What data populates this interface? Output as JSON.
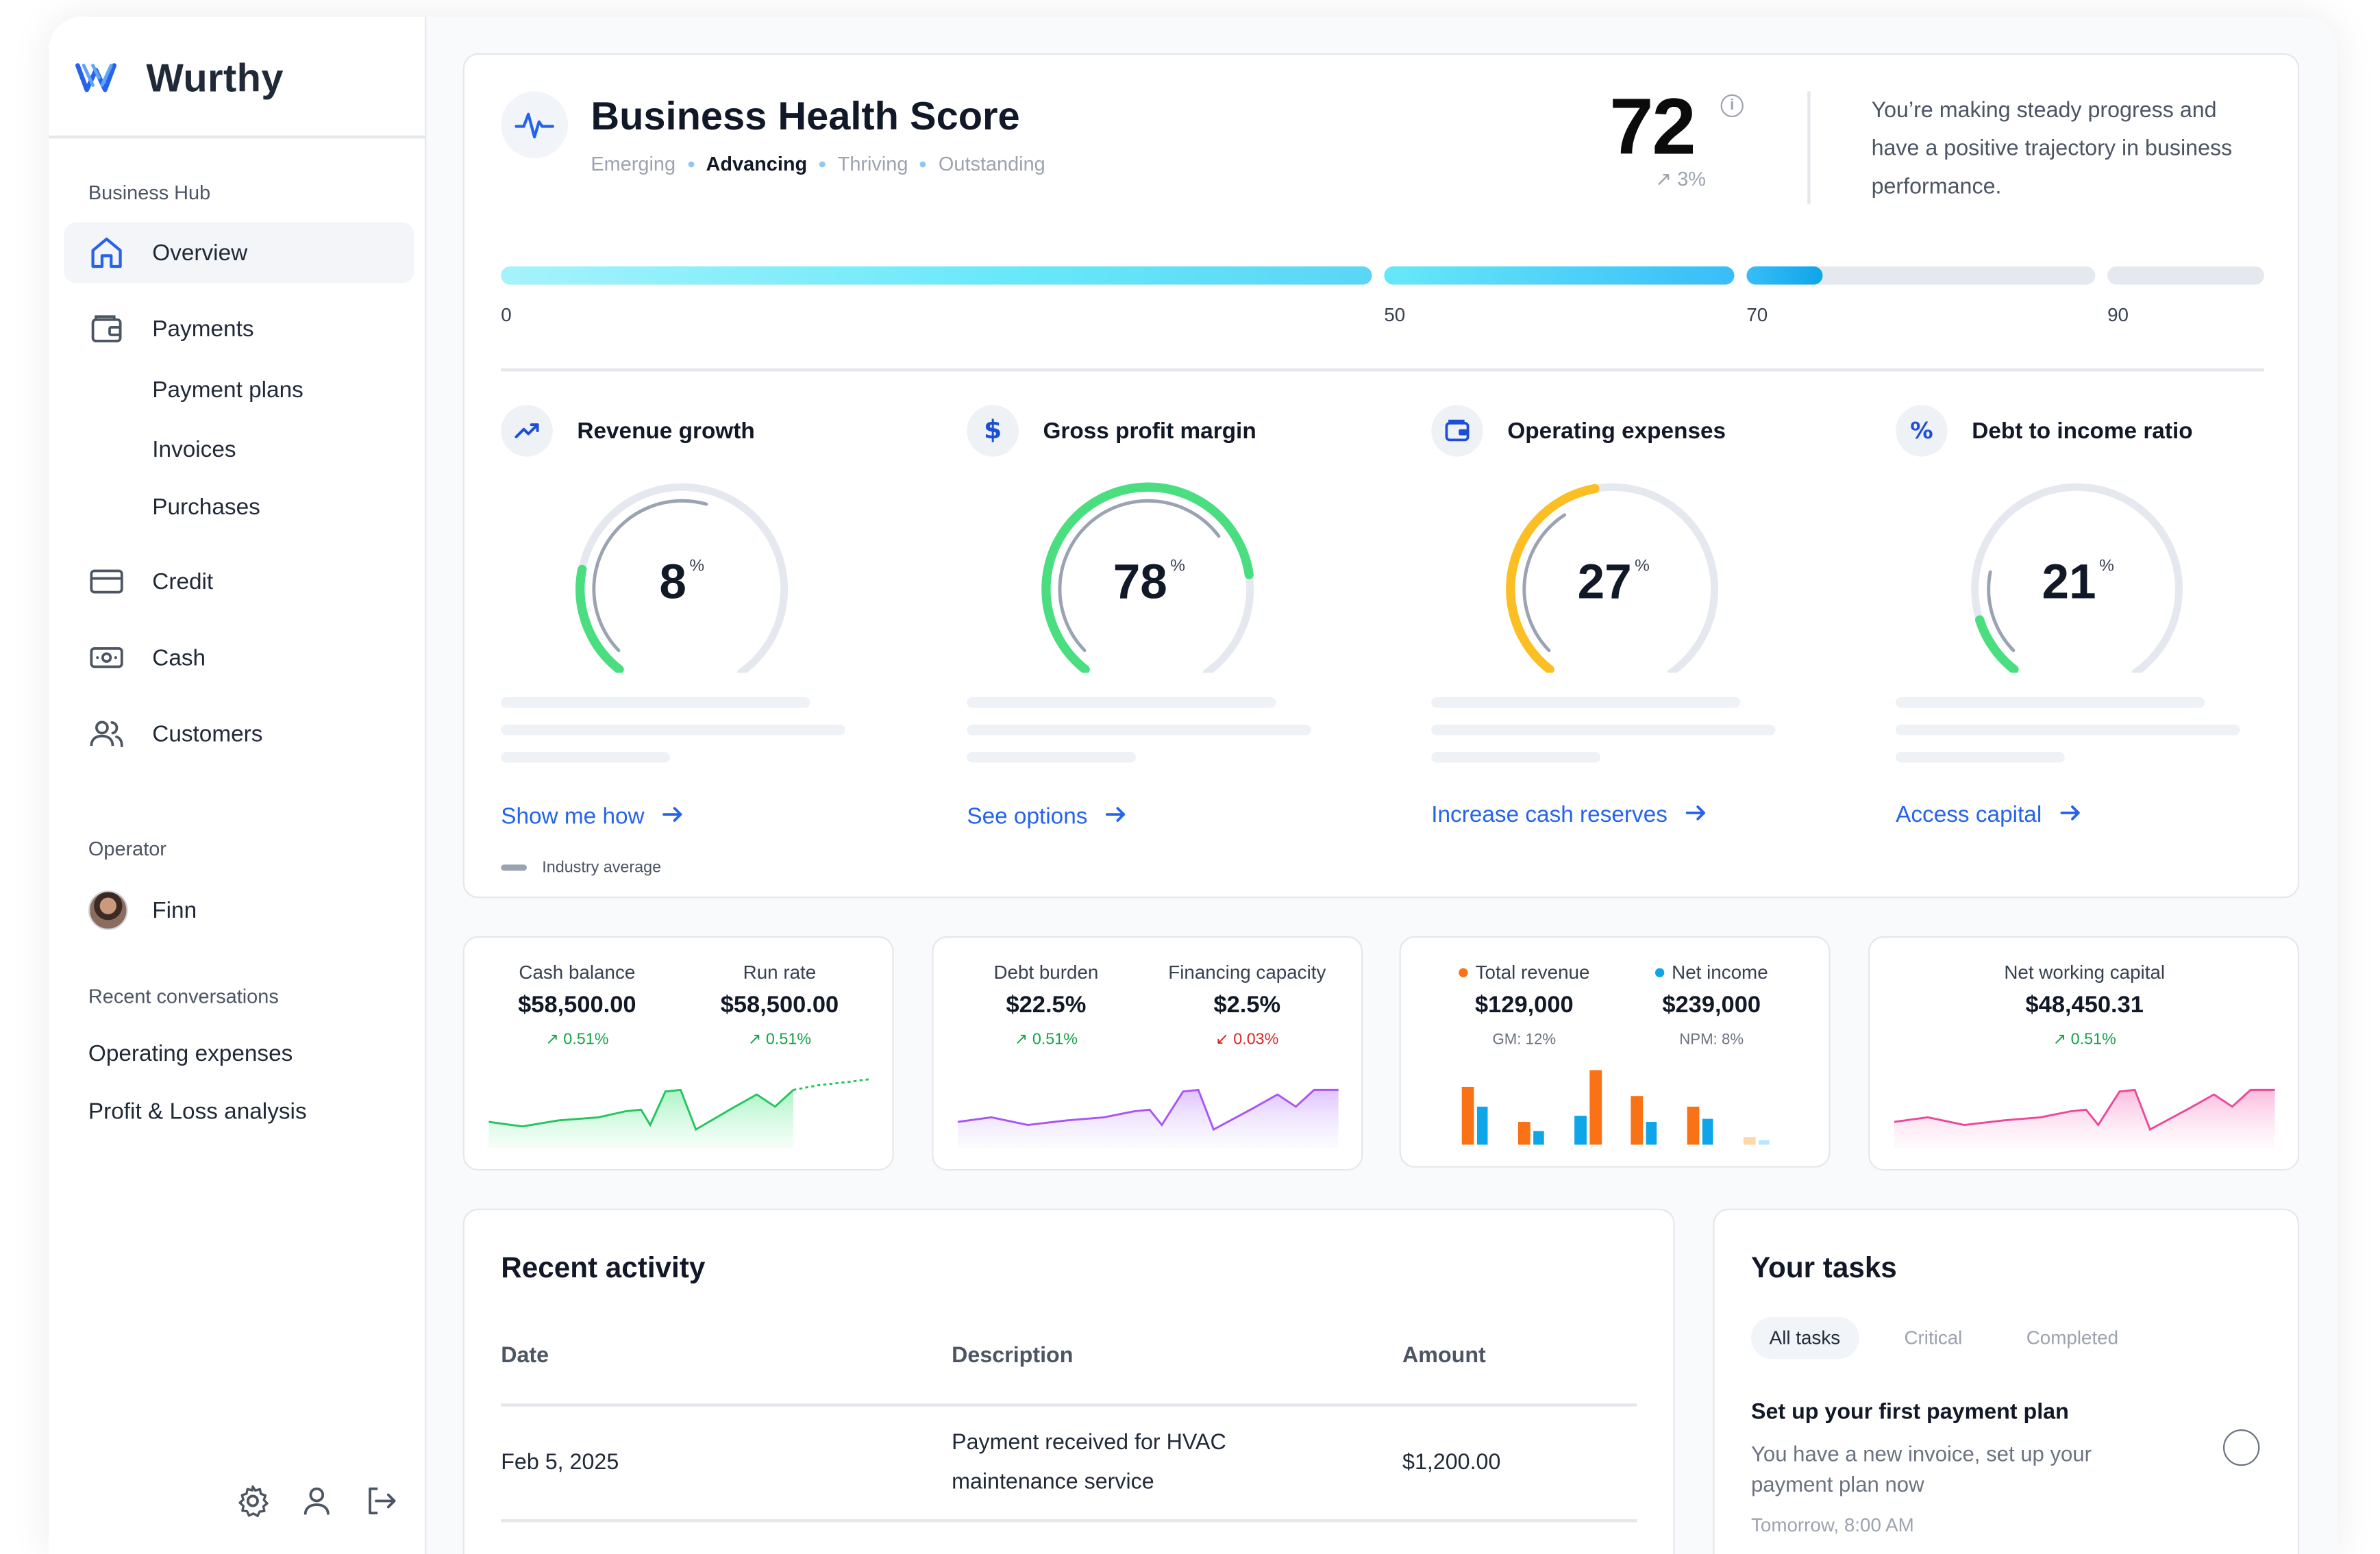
{
  "brand": {
    "name": "Wurthy",
    "accent": "#2563eb"
  },
  "sidebar": {
    "section_hub": "Business Hub",
    "items": [
      {
        "label": "Overview",
        "icon": "home-icon",
        "active": true
      },
      {
        "label": "Payments",
        "icon": "wallet-icon"
      },
      {
        "label": "Credit",
        "icon": "credit-card-icon"
      },
      {
        "label": "Cash",
        "icon": "cash-icon"
      },
      {
        "label": "Customers",
        "icon": "users-icon"
      }
    ],
    "payments_sub": [
      "Payment plans",
      "Invoices",
      "Purchases"
    ],
    "section_operator": "Operator",
    "operator_name": "Finn",
    "section_conversations": "Recent conversations",
    "conversations": [
      "Operating expenses",
      "Profit & Loss analysis"
    ],
    "footer_icons": [
      "settings-icon",
      "user-icon",
      "logout-icon"
    ]
  },
  "health": {
    "title": "Business Health Score",
    "stages": [
      "Emerging",
      "Advancing",
      "Thriving",
      "Outstanding"
    ],
    "current_stage": "Advancing",
    "score": "72",
    "delta": "↗ 3%",
    "message": "You’re making steady progress and have a positive trajectory in business performance.",
    "scale_ticks": [
      "0",
      "50",
      "70",
      "90"
    ],
    "legend": "Industry average",
    "metrics": [
      {
        "title": "Revenue growth",
        "icon": "trend-up-icon",
        "value": "8",
        "unit": "%",
        "fraction": 0.22,
        "industry": 0.55,
        "color": "#4ade80",
        "link": "Show me how"
      },
      {
        "title": "Gross profit margin",
        "icon": "dollar-icon",
        "value": "78",
        "unit": "%",
        "fraction": 0.78,
        "industry": 0.68,
        "color": "#4ade80",
        "link": "See options"
      },
      {
        "title": "Operating expenses",
        "icon": "wallet-icon",
        "value": "27",
        "unit": "%",
        "fraction": 0.46,
        "industry": 0.38,
        "color": "#fbbf24",
        "link": "Increase cash reserves"
      },
      {
        "title": "Debt to income ratio",
        "icon": "percent-icon",
        "value": "21",
        "unit": "%",
        "fraction": 0.12,
        "industry": 0.22,
        "color": "#4ade80",
        "link": "Access capital"
      }
    ]
  },
  "kpis": {
    "card1": [
      {
        "label": "Cash balance",
        "value": "$58,500.00",
        "delta": "↗ 0.51%",
        "trend": "up"
      },
      {
        "label": "Run rate",
        "value": "$58,500.00",
        "delta": "↗ 0.51%",
        "trend": "up"
      }
    ],
    "card2": [
      {
        "label": "Debt burden",
        "value": "$22.5%",
        "delta": "↗ 0.51%",
        "trend": "up"
      },
      {
        "label": "Financing capacity",
        "value": "$2.5%",
        "delta": "↙ 0.03%",
        "trend": "down"
      }
    ],
    "card3": [
      {
        "label": "Total revenue",
        "value": "$129,000",
        "sub": "GM: 12%",
        "dot": "#f97316"
      },
      {
        "label": "Net income",
        "value": "$239,000",
        "sub": "NPM: 8%",
        "dot": "#0ea5e9"
      }
    ],
    "card4": [
      {
        "label": "Net working capital",
        "value": "$48,450.31",
        "delta": "↗ 0.51%",
        "trend": "up"
      }
    ]
  },
  "activity": {
    "title": "Recent activity",
    "headers": [
      "Date",
      "Description",
      "Amount"
    ],
    "rows": [
      {
        "date": "Feb 5, 2025",
        "description": "Payment received for HVAC maintenance service",
        "amount": "$1,200.00"
      }
    ]
  },
  "tasks": {
    "title": "Your tasks",
    "tabs": [
      "All tasks",
      "Critical",
      "Completed"
    ],
    "active_tab": "All tasks",
    "items": [
      {
        "title": "Set up your first payment plan",
        "description": "You have a new invoice, set up your payment plan now",
        "time": "Tomorrow, 8:00 AM"
      }
    ]
  }
}
